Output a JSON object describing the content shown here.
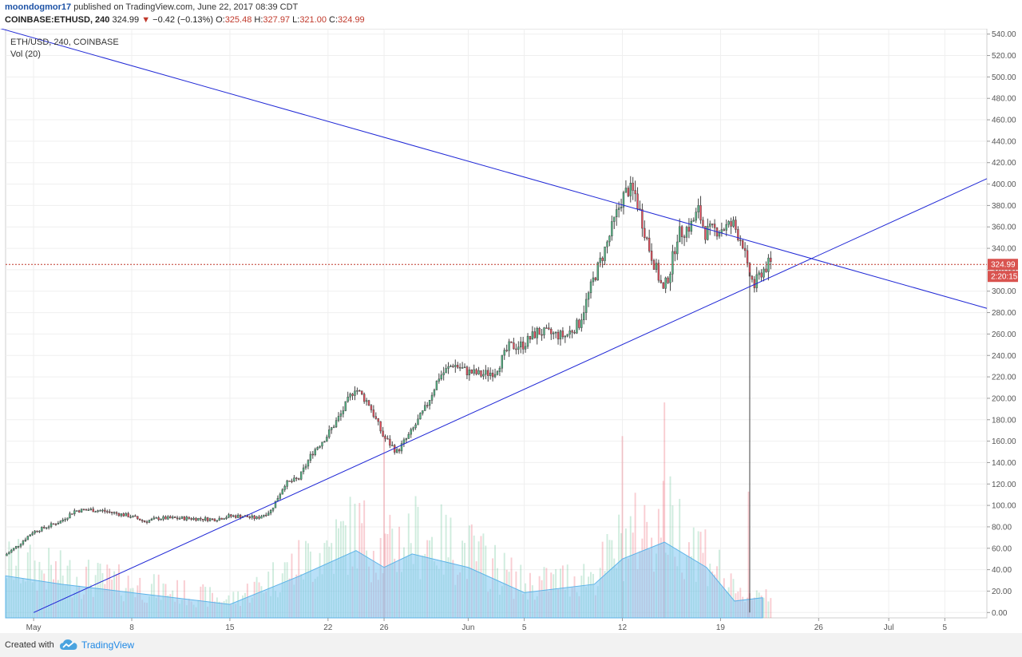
{
  "header": {
    "user": "moondogmor17",
    "published": "published on TradingView.com, June 22, 2017 08:39 CDT",
    "symbol": "COINBASE:ETHUSD, 240",
    "last": "324.99",
    "arrow": "▼",
    "change": "−0.42 (−0.13%)",
    "o_label": "O:",
    "o_value": "325.48",
    "h_label": "H:",
    "h_value": "327.97",
    "l_label": "L:",
    "l_value": "321.00",
    "c_label": "C:",
    "c_value": "324.99"
  },
  "legend": {
    "series": "ETH/USD, 240, COINBASE",
    "volume": "Vol (20)"
  },
  "footer": {
    "created_with": "Created with",
    "brand": "TradingView",
    "logo_icon": "tradingview-cloud-icon"
  },
  "chart_data": {
    "type": "candlestick",
    "timeframe": "240",
    "x_range": [
      "2017-04-29",
      "2017-07-08"
    ],
    "ylim": [
      -5,
      545
    ],
    "y_ticks": [
      0,
      20,
      40,
      60,
      80,
      100,
      120,
      140,
      160,
      180,
      200,
      220,
      240,
      260,
      280,
      300,
      320,
      340,
      360,
      380,
      400,
      420,
      440,
      460,
      480,
      500,
      520,
      540
    ],
    "y_tick_labels": [
      "0.00",
      "20.00",
      "40.00",
      "60.00",
      "80.00",
      "100.00",
      "120.00",
      "140.00",
      "160.00",
      "180.00",
      "200.00",
      "220.00",
      "240.00",
      "260.00",
      "280.00",
      "300.00",
      "320.00",
      "340.00",
      "360.00",
      "380.00",
      "400.00",
      "420.00",
      "440.00",
      "460.00",
      "480.00",
      "500.00",
      "520.00",
      "540.00"
    ],
    "x_ticks": [
      {
        "date": "2017-05-01",
        "label": "May"
      },
      {
        "date": "2017-05-08",
        "label": "8"
      },
      {
        "date": "2017-05-15",
        "label": "15"
      },
      {
        "date": "2017-05-22",
        "label": "22"
      },
      {
        "date": "2017-05-26",
        "label": "26"
      },
      {
        "date": "2017-06-01",
        "label": "Jun"
      },
      {
        "date": "2017-06-05",
        "label": "5"
      },
      {
        "date": "2017-06-12",
        "label": "12"
      },
      {
        "date": "2017-06-19",
        "label": "19"
      },
      {
        "date": "2017-06-26",
        "label": "26"
      },
      {
        "date": "2017-07-01",
        "label": "Jul"
      },
      {
        "date": "2017-07-05",
        "label": "5"
      }
    ],
    "price_path": [
      [
        "2017-04-29",
        53
      ],
      [
        "2017-04-30",
        63
      ],
      [
        "2017-05-01",
        75
      ],
      [
        "2017-05-02",
        80
      ],
      [
        "2017-05-03",
        85
      ],
      [
        "2017-05-04",
        95
      ],
      [
        "2017-05-05",
        96
      ],
      [
        "2017-05-06",
        95
      ],
      [
        "2017-05-08",
        90
      ],
      [
        "2017-05-09",
        85
      ],
      [
        "2017-05-10",
        88
      ],
      [
        "2017-05-12",
        88
      ],
      [
        "2017-05-14",
        87
      ],
      [
        "2017-05-15",
        90
      ],
      [
        "2017-05-16",
        90
      ],
      [
        "2017-05-17",
        88
      ],
      [
        "2017-05-18",
        95
      ],
      [
        "2017-05-19",
        120
      ],
      [
        "2017-05-20",
        125
      ],
      [
        "2017-05-21",
        150
      ],
      [
        "2017-05-22",
        165
      ],
      [
        "2017-05-23",
        185
      ],
      [
        "2017-05-24",
        210
      ],
      [
        "2017-05-25",
        195
      ],
      [
        "2017-05-26",
        165
      ],
      [
        "2017-05-27",
        150
      ],
      [
        "2017-05-28",
        168
      ],
      [
        "2017-05-29",
        190
      ],
      [
        "2017-05-30",
        220
      ],
      [
        "2017-05-31",
        232
      ],
      [
        "2017-06-01",
        225
      ],
      [
        "2017-06-02",
        222
      ],
      [
        "2017-06-03",
        225
      ],
      [
        "2017-06-04",
        248
      ],
      [
        "2017-06-05",
        250
      ],
      [
        "2017-06-06",
        262
      ],
      [
        "2017-06-07",
        260
      ],
      [
        "2017-06-08",
        258
      ],
      [
        "2017-06-09",
        270
      ],
      [
        "2017-06-10",
        310
      ],
      [
        "2017-06-11",
        345
      ],
      [
        "2017-06-12",
        385
      ],
      [
        "2017-06-12T12",
        395
      ],
      [
        "2017-06-13",
        390
      ],
      [
        "2017-06-14",
        340
      ],
      [
        "2017-06-15",
        300
      ],
      [
        "2017-06-15T12",
        320
      ],
      [
        "2017-06-16",
        352
      ],
      [
        "2017-06-17",
        362
      ],
      [
        "2017-06-17T12",
        375
      ],
      [
        "2017-06-18",
        355
      ],
      [
        "2017-06-19",
        358
      ],
      [
        "2017-06-20",
        362
      ],
      [
        "2017-06-20T16",
        345
      ],
      [
        "2017-06-21",
        320
      ],
      [
        "2017-06-21T12",
        305
      ],
      [
        "2017-06-22",
        318
      ],
      [
        "2017-06-22T12",
        324.99
      ]
    ],
    "volume_path": [
      [
        "2017-04-29",
        25
      ],
      [
        "2017-05-03",
        20
      ],
      [
        "2017-05-08",
        15
      ],
      [
        "2017-05-15",
        8
      ],
      [
        "2017-05-20",
        25
      ],
      [
        "2017-05-24",
        40
      ],
      [
        "2017-05-26",
        30
      ],
      [
        "2017-05-28",
        38
      ],
      [
        "2017-06-01",
        30
      ],
      [
        "2017-06-05",
        15
      ],
      [
        "2017-06-10",
        20
      ],
      [
        "2017-06-12",
        35
      ],
      [
        "2017-06-15",
        45
      ],
      [
        "2017-06-18",
        30
      ],
      [
        "2017-06-20",
        10
      ],
      [
        "2017-06-22",
        12
      ]
    ],
    "volume_spikes": [
      [
        "2017-05-26",
        108
      ],
      [
        "2017-06-12",
        108
      ],
      [
        "2017-06-15",
        128
      ],
      [
        "2017-06-21",
        75
      ]
    ],
    "trendlines": [
      {
        "from": [
          "2017-04-26",
          555
        ],
        "to": [
          "2017-07-08",
          284
        ]
      },
      {
        "from": [
          "2017-05-01",
          0
        ],
        "to": [
          "2017-07-08",
          405
        ]
      }
    ],
    "flash_crash": {
      "date": "2017-06-21T02",
      "low": 0
    },
    "last_price": 324.99,
    "last_price_label": "324.99",
    "countdown": "2:20:15",
    "colors": {
      "up": "#53b987",
      "down": "#eb4d5c",
      "volume_area": "#7fc6f2",
      "trendline": "#1f27d6",
      "price_line": "#c0392b",
      "price_tag": "#d9534f"
    }
  }
}
